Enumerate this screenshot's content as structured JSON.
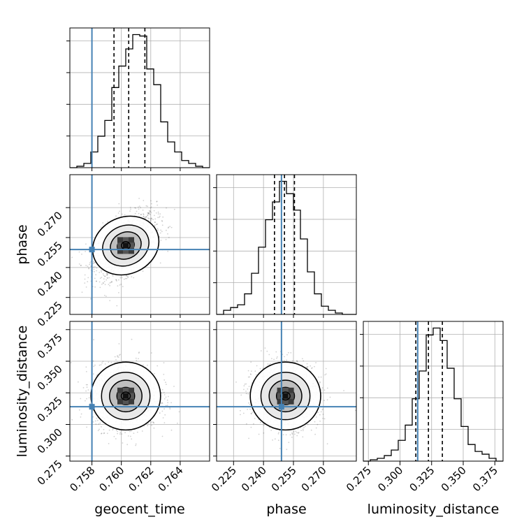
{
  "chart_data": {
    "type": "corner",
    "parameters": [
      "geocent_time",
      "phase",
      "luminosity_distance"
    ],
    "truths": {
      "geocent_time": 0.758,
      "phase": 0.249,
      "luminosity_distance": 0.314
    },
    "quantiles": {
      "geocent_time": [
        0.7595,
        0.7605,
        0.7616
      ],
      "phase": [
        0.2455,
        0.2505,
        0.2555
      ],
      "luminosity_distance": [
        0.3125,
        0.3225,
        0.3335
      ]
    },
    "axes": {
      "geocent_time": {
        "range": [
          0.7565,
          0.766
        ],
        "ticks": [
          0.758,
          0.76,
          0.762,
          0.764
        ],
        "tick_labels": [
          "0.758",
          "0.760",
          "0.762",
          "0.764"
        ],
        "label": "geocent_time"
      },
      "phase": {
        "range": [
          0.2165,
          0.2865
        ],
        "ticks": [
          0.225,
          0.24,
          0.255,
          0.27
        ],
        "tick_labels": [
          "0.225",
          "0.240",
          "0.255",
          "0.270"
        ],
        "label": "phase"
      },
      "luminosity_distance": {
        "range": [
          0.271,
          0.3815
        ],
        "ticks": [
          0.275,
          0.3,
          0.325,
          0.35,
          0.375
        ],
        "tick_labels": [
          "0.275",
          "0.300",
          "0.325",
          "0.350",
          "0.375"
        ],
        "label": "luminosity_distance"
      }
    },
    "histograms": {
      "geocent_time": {
        "edges_start": 0.7565,
        "bin_width": 0.000475,
        "counts": [
          0,
          1,
          3,
          11,
          22,
          33,
          56,
          71,
          83,
          93,
          92,
          69,
          58,
          32,
          18,
          11,
          5,
          3,
          1,
          0
        ]
      },
      "phase": {
        "edges_start": 0.2165,
        "bin_width": 0.0035,
        "counts": [
          0,
          3,
          5,
          7,
          15,
          30,
          49,
          69,
          82,
          97,
          88,
          76,
          55,
          31,
          15,
          6,
          3,
          1,
          0,
          0
        ]
      },
      "luminosity_distance": {
        "edges_start": 0.271,
        "bin_width": 0.005525,
        "counts": [
          0,
          1,
          2,
          4,
          8,
          15,
          26,
          45,
          65,
          91,
          96,
          87,
          67,
          45,
          25,
          12,
          7,
          5,
          2,
          0
        ]
      }
    },
    "scatter_stats": {
      "geocent_time_phase": {
        "mean": [
          0.7603,
          0.251
        ],
        "sd": [
          0.00105,
          0.008
        ],
        "corr": 0.5
      },
      "geocent_time_luminosity_distance": {
        "mean": [
          0.7603,
          0.3225
        ],
        "sd": [
          0.0011,
          0.0125
        ],
        "corr": 0.0
      },
      "phase_luminosity_distance": {
        "mean": [
          0.251,
          0.3225
        ],
        "sd": [
          0.0082,
          0.0125
        ],
        "corr": 0.0
      }
    },
    "grid": true,
    "colors": {
      "truth": "#4682b4",
      "hist": "#000000",
      "quantile": "#000000",
      "grid": "#b0b0b0",
      "points": "#000000"
    }
  }
}
